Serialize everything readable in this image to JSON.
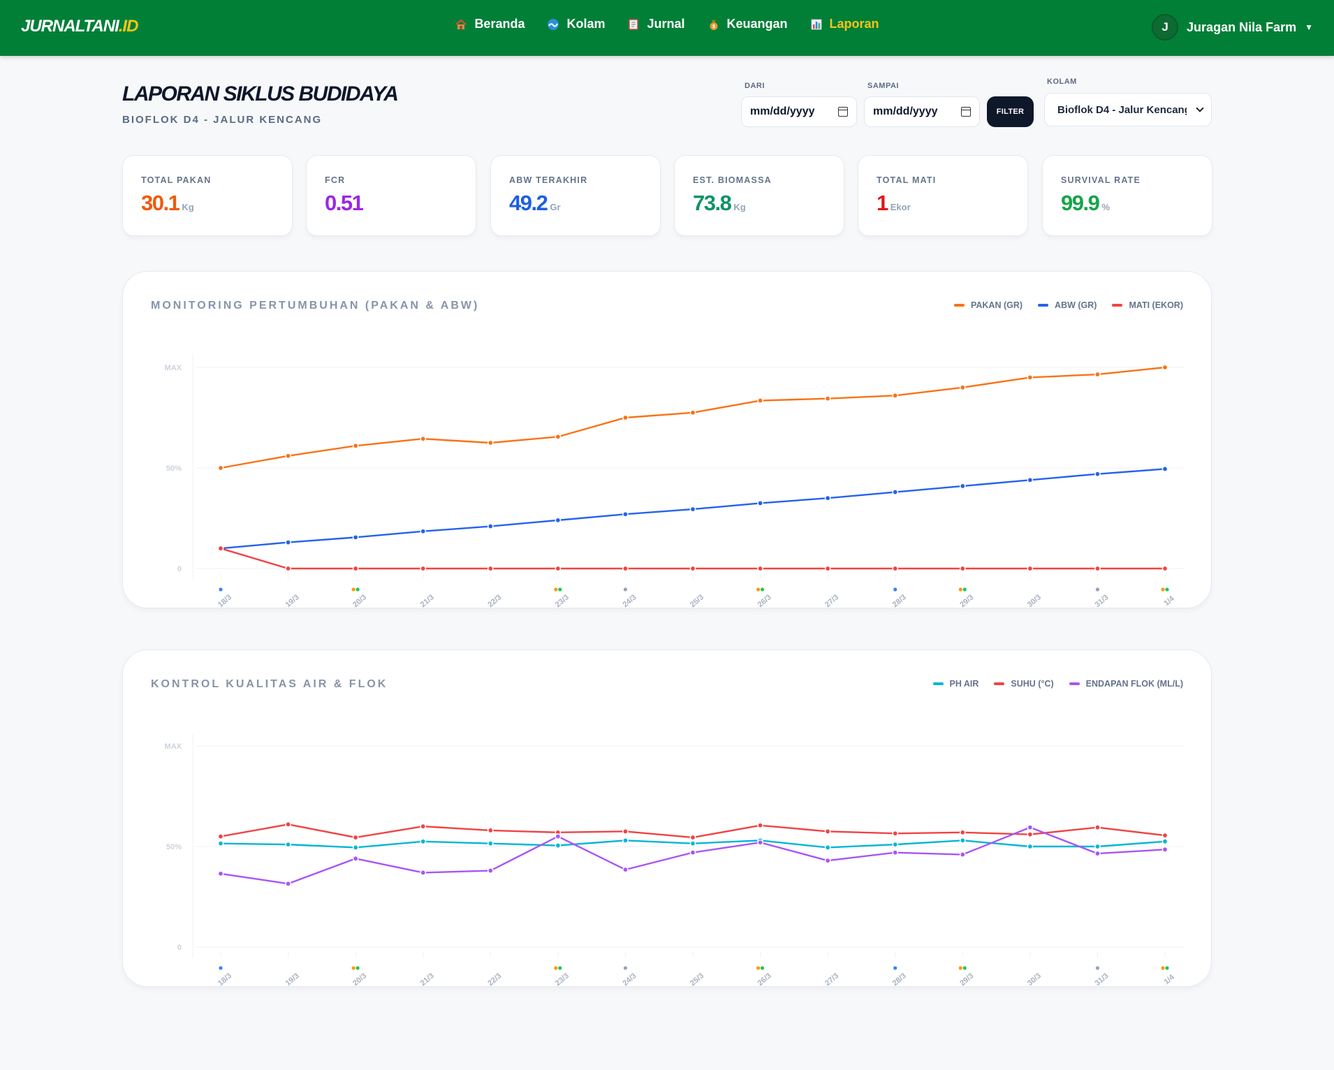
{
  "brand": {
    "main": "JURNALTANI",
    "accent": ".ID"
  },
  "nav": [
    {
      "label": "Beranda",
      "icon": "house-icon",
      "active": false
    },
    {
      "label": "Kolam",
      "icon": "wave-icon",
      "active": false
    },
    {
      "label": "Jurnal",
      "icon": "notebook-icon",
      "active": false
    },
    {
      "label": "Keuangan",
      "icon": "money-bag-icon",
      "active": false
    },
    {
      "label": "Laporan",
      "icon": "bar-chart-icon",
      "active": true
    }
  ],
  "user": {
    "initial": "J",
    "name": "Juragan Nila Farm"
  },
  "header": {
    "title": "LAPORAN SIKLUS BUDIDAYA",
    "subtitle": "BIOFLOK D4 - JALUR KENCANG"
  },
  "filters": {
    "from_label": "DARI",
    "from_value": "mm/dd/yyyy",
    "to_label": "SAMPAI",
    "to_value": "mm/dd/yyyy",
    "filter_button": "FILTER",
    "pond_label": "KOLAM",
    "pond_value": "Bioflok D4 - Jalur Kencang"
  },
  "stats": [
    {
      "label": "TOTAL PAKAN",
      "value": "30.1",
      "unit": "Kg",
      "color": "#f05a0e"
    },
    {
      "label": "FCR",
      "value": "0.51",
      "unit": "",
      "color": "#9b27e6"
    },
    {
      "label": "ABW TERAKHIR",
      "value": "49.2",
      "unit": "Gr",
      "color": "#1d5ee6"
    },
    {
      "label": "EST. BIOMASSA",
      "value": "73.8",
      "unit": "Kg",
      "color": "#0e9366"
    },
    {
      "label": "TOTAL MATI",
      "value": "1",
      "unit": "Ekor",
      "color": "#e01616"
    },
    {
      "label": "SURVIVAL RATE",
      "value": "99.9",
      "unit": "%",
      "color": "#16a34a"
    }
  ],
  "chart_data": [
    {
      "type": "line",
      "title": "MONITORING PERTUMBUHAN (PAKAN & ABW)",
      "y_ticks": [
        "MAX",
        "50%",
        "0"
      ],
      "ylim": [
        0,
        100
      ],
      "categories": [
        "18/3",
        "19/3",
        "20/3",
        "21/3",
        "22/3",
        "23/3",
        "24/3",
        "25/3",
        "26/3",
        "27/3",
        "28/3",
        "29/3",
        "30/3",
        "31/3",
        "1/4"
      ],
      "series": [
        {
          "name": "PAKAN (GR)",
          "color": "#f97316",
          "values": [
            50,
            56,
            61,
            64.5,
            62.5,
            65.5,
            75,
            77.5,
            83.5,
            84.5,
            86,
            90,
            95,
            96.5,
            100
          ]
        },
        {
          "name": "ABW (GR)",
          "color": "#2563eb",
          "values": [
            10,
            13,
            15.5,
            18.5,
            21,
            24,
            27,
            29.5,
            32.5,
            35,
            38,
            41,
            44,
            47,
            49.5
          ]
        },
        {
          "name": "MATI (EKOR)",
          "color": "#ef4444",
          "values": [
            10,
            0,
            0,
            0,
            0,
            0,
            0,
            0,
            0,
            0,
            0,
            0,
            0,
            0,
            0
          ]
        }
      ],
      "marker_dots": [
        [
          "#3b82f6"
        ],
        [],
        [
          "#f59e0b",
          "#22c55e"
        ],
        [],
        [],
        [
          "#f59e0b",
          "#22c55e"
        ],
        [
          "#94a3b8"
        ],
        [],
        [
          "#f59e0b",
          "#22c55e"
        ],
        [],
        [
          "#3b82f6"
        ],
        [
          "#f59e0b",
          "#22c55e"
        ],
        [],
        [
          "#94a3b8"
        ],
        [
          "#f59e0b",
          "#22c55e"
        ]
      ]
    },
    {
      "type": "line",
      "title": "KONTROL KUALITAS AIR & FLOK",
      "y_ticks": [
        "MAX",
        "50%",
        "0"
      ],
      "ylim": [
        0,
        100
      ],
      "categories": [
        "18/3",
        "19/3",
        "20/3",
        "21/3",
        "22/3",
        "23/3",
        "24/3",
        "25/3",
        "26/3",
        "27/3",
        "28/3",
        "29/3",
        "30/3",
        "31/3",
        "1/4"
      ],
      "series": [
        {
          "name": "PH AIR",
          "color": "#06b6d4",
          "values": [
            51.5,
            51,
            49.5,
            52.5,
            51.5,
            50.5,
            53,
            51.5,
            53,
            49.5,
            51,
            53,
            50,
            50,
            52.5
          ]
        },
        {
          "name": "SUHU (°C)",
          "color": "#ef4444",
          "values": [
            55,
            61,
            54.5,
            60,
            58,
            57,
            57.5,
            54.5,
            60.5,
            57.5,
            56.5,
            57,
            56,
            59.5,
            55.5
          ]
        },
        {
          "name": "ENDAPAN FLOK (ML/L)",
          "color": "#a855f7",
          "values": [
            36.5,
            31.5,
            44,
            37,
            38,
            55,
            38.5,
            47,
            52,
            43,
            47,
            46,
            59.5,
            46.5,
            48.5
          ]
        }
      ],
      "marker_dots": [
        [
          "#3b82f6"
        ],
        [],
        [
          "#f59e0b",
          "#22c55e"
        ],
        [],
        [],
        [
          "#f59e0b",
          "#22c55e"
        ],
        [
          "#94a3b8"
        ],
        [],
        [
          "#f59e0b",
          "#22c55e"
        ],
        [],
        [
          "#3b82f6"
        ],
        [
          "#f59e0b",
          "#22c55e"
        ],
        [],
        [
          "#94a3b8"
        ],
        [
          "#f59e0b",
          "#22c55e"
        ]
      ]
    }
  ]
}
